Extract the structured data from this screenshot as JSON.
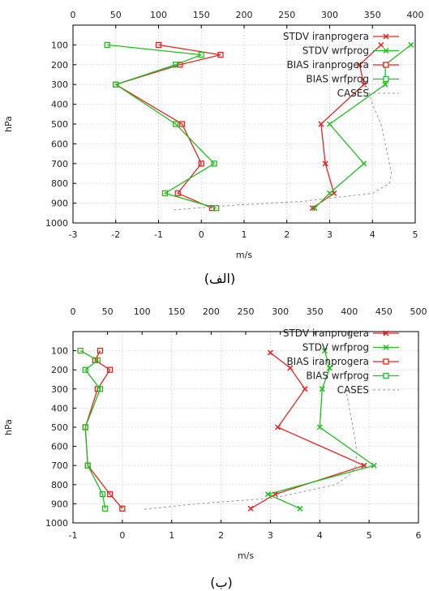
{
  "chart_data": [
    {
      "type": "line",
      "caption": "(الف)",
      "xlabel": "m/s",
      "ylabel": "hPa",
      "xlim": [
        -3,
        5
      ],
      "x2lim": [
        0,
        400
      ],
      "ylim": [
        1000,
        0
      ],
      "xticks": [
        "-3",
        "-2",
        "-1",
        "0",
        "1",
        "2",
        "3",
        "4",
        "5"
      ],
      "x2ticks": [
        "0",
        "50",
        "100",
        "150",
        "200",
        "250",
        "300",
        "350",
        "400"
      ],
      "yticks": [
        "100",
        "200",
        "300",
        "400",
        "500",
        "600",
        "700",
        "800",
        "900",
        "1000"
      ],
      "grid": true,
      "legend_position": "top-right",
      "series": [
        {
          "name": "STDV iranprogera",
          "color": "#e8231f",
          "marker": "x",
          "x": [
            4.2,
            3.7,
            3.8,
            2.8,
            2.9,
            3.1,
            2.6
          ],
          "y": [
            100,
            200,
            300,
            500,
            700,
            850,
            925
          ]
        },
        {
          "name": "STDV wrfprog",
          "color": "#1fbf1f",
          "marker": "x",
          "x": [
            4.9,
            4.3,
            4.3,
            3.0,
            3.8,
            3.0,
            2.65
          ],
          "y": [
            100,
            200,
            300,
            500,
            700,
            850,
            925
          ]
        },
        {
          "name": "BIAS iranprogera",
          "color": "#e8231f",
          "marker": "square",
          "x": [
            -1.0,
            0.45,
            -0.5,
            -2.0,
            -0.45,
            0.0,
            -0.55,
            0.25
          ],
          "y": [
            100,
            150,
            200,
            300,
            500,
            700,
            850,
            925
          ]
        },
        {
          "name": "BIAS wrfprog",
          "color": "#1fbf1f",
          "marker": "square",
          "x": [
            -2.2,
            0.0,
            -0.6,
            -2.0,
            -0.6,
            0.3,
            -0.85,
            0.35
          ],
          "y": [
            100,
            150,
            200,
            300,
            500,
            700,
            850,
            925
          ]
        },
        {
          "name": "CASES",
          "color": "#999999",
          "marker": "none",
          "dashed": true,
          "axis": "top",
          "x": [
            340,
            345,
            350,
            360,
            365,
            370,
            372,
            370,
            350,
            270,
            190,
            115
          ],
          "y": [
            300,
            320,
            400,
            500,
            600,
            700,
            750,
            800,
            850,
            890,
            910,
            935
          ]
        }
      ]
    },
    {
      "type": "line",
      "caption": "(ب)",
      "xlabel": "m/s",
      "ylabel": "hPa",
      "xlim": [
        -1,
        6
      ],
      "x2lim": [
        0,
        500
      ],
      "ylim": [
        1000,
        0
      ],
      "xticks": [
        "-1",
        "0",
        "1",
        "2",
        "3",
        "4",
        "5",
        "6"
      ],
      "x2ticks": [
        "0",
        "50",
        "100",
        "150",
        "200",
        "250",
        "300",
        "350",
        "400",
        "450",
        "500"
      ],
      "yticks": [
        "100",
        "200",
        "300",
        "400",
        "500",
        "600",
        "700",
        "800",
        "900",
        "1000"
      ],
      "grid": true,
      "legend_position": "top-right",
      "series": [
        {
          "name": "STDV iranprogera",
          "color": "#e8231f",
          "marker": "x",
          "x": [
            3.0,
            3.4,
            3.7,
            3.15,
            4.9,
            3.1,
            2.6
          ],
          "y": [
            110,
            190,
            300,
            500,
            700,
            850,
            925
          ]
        },
        {
          "name": "STDV wrfprog",
          "color": "#1fbf1f",
          "marker": "x",
          "x": [
            4.1,
            4.2,
            4.05,
            4.0,
            5.1,
            2.95,
            3.6
          ],
          "y": [
            100,
            190,
            300,
            500,
            700,
            850,
            925
          ]
        },
        {
          "name": "BIAS iranprogera",
          "color": "#e8231f",
          "marker": "square",
          "x": [
            -0.45,
            -0.55,
            -0.25,
            -0.5,
            -0.75,
            -0.7,
            -0.25,
            0.0
          ],
          "y": [
            100,
            150,
            200,
            300,
            500,
            700,
            850,
            925
          ]
        },
        {
          "name": "BIAS wrfprog",
          "color": "#1fbf1f",
          "marker": "square",
          "x": [
            -0.85,
            -0.5,
            -0.75,
            -0.45,
            -0.75,
            -0.7,
            -0.4,
            -0.35
          ],
          "y": [
            100,
            150,
            200,
            300,
            500,
            700,
            850,
            925
          ]
        },
        {
          "name": "CASES",
          "color": "#999999",
          "marker": "none",
          "dashed": true,
          "axis": "top",
          "x": [
            395,
            400,
            405,
            410,
            410,
            410,
            400,
            380,
            290,
            180,
            100
          ],
          "y": [
            300,
            400,
            500,
            600,
            650,
            700,
            750,
            800,
            870,
            900,
            930
          ]
        }
      ]
    }
  ]
}
